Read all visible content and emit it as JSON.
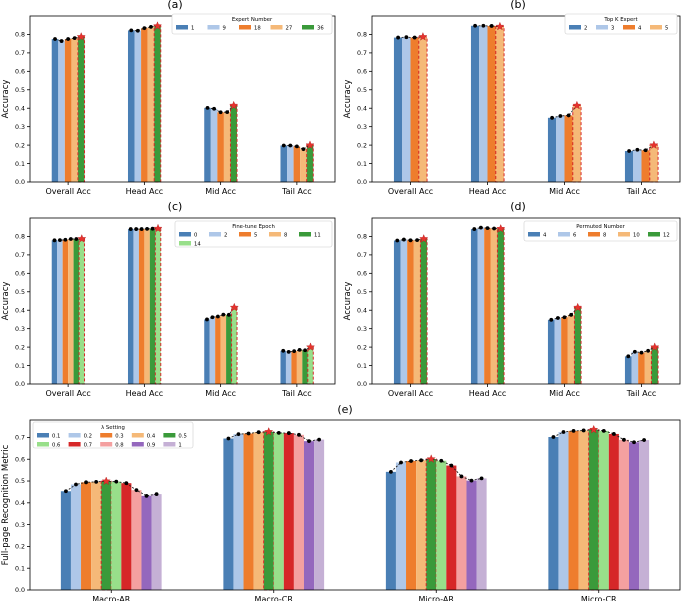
{
  "chart_data": [
    {
      "id": "a",
      "type": "bar",
      "title": "(a)",
      "xlabel": "",
      "ylabel": "Accuracy",
      "ylim": [
        0,
        0.9
      ],
      "yticks": [
        "0.0",
        "0.1",
        "0.2",
        "0.3",
        "0.4",
        "0.5",
        "0.6",
        "0.7",
        "0.8"
      ],
      "legend_title": "Expert Number",
      "legend_position": "top-right",
      "legend_cols": 5,
      "categories": [
        "Overall Acc",
        "Head Acc",
        "Mid Acc",
        "Tail Acc"
      ],
      "best_index": 4,
      "series": [
        {
          "name": "1",
          "color": "#4a7fb5",
          "values": [
            0.775,
            0.822,
            0.402,
            0.198
          ]
        },
        {
          "name": "9",
          "color": "#aec7e8",
          "values": [
            0.764,
            0.82,
            0.397,
            0.198
          ]
        },
        {
          "name": "18",
          "color": "#ee7d2d",
          "values": [
            0.775,
            0.834,
            0.378,
            0.193
          ]
        },
        {
          "name": "27",
          "color": "#f5b978",
          "values": [
            0.78,
            0.841,
            0.379,
            0.178
          ]
        },
        {
          "name": "36",
          "color": "#3a9a3a",
          "values": [
            0.787,
            0.846,
            0.415,
            0.2
          ]
        }
      ]
    },
    {
      "id": "b",
      "type": "bar",
      "title": "(b)",
      "xlabel": "",
      "ylabel": "Accuracy",
      "ylim": [
        0,
        0.9
      ],
      "yticks": [
        "0.0",
        "0.1",
        "0.2",
        "0.3",
        "0.4",
        "0.5",
        "0.6",
        "0.7",
        "0.8"
      ],
      "legend_title": "Top K Expert",
      "legend_position": "top-right",
      "legend_cols": 4,
      "categories": [
        "Overall Acc",
        "Head Acc",
        "Mid Acc",
        "Tail Acc"
      ],
      "best_index": 3,
      "series": [
        {
          "name": "2",
          "color": "#4a7fb5",
          "values": [
            0.783,
            0.847,
            0.348,
            0.168
          ]
        },
        {
          "name": "3",
          "color": "#aec7e8",
          "values": [
            0.785,
            0.847,
            0.358,
            0.175
          ]
        },
        {
          "name": "4",
          "color": "#ee7d2d",
          "values": [
            0.783,
            0.846,
            0.361,
            0.172
          ]
        },
        {
          "name": "5",
          "color": "#f5b978",
          "values": [
            0.787,
            0.843,
            0.415,
            0.2
          ]
        }
      ]
    },
    {
      "id": "c",
      "type": "bar",
      "title": "(c)",
      "xlabel": "",
      "ylabel": "Accuracy",
      "ylim": [
        0,
        0.9
      ],
      "yticks": [
        "0.0",
        "0.1",
        "0.2",
        "0.3",
        "0.4",
        "0.5",
        "0.6",
        "0.7",
        "0.8"
      ],
      "legend_title": "Fine-tune Epoch",
      "legend_position": "top-right",
      "legend_cols": 5,
      "categories": [
        "Overall Acc",
        "Head Acc",
        "Mid Acc",
        "Tail Acc"
      ],
      "best_index": 5,
      "series": [
        {
          "name": "0",
          "color": "#4a7fb5",
          "values": [
            0.779,
            0.84,
            0.35,
            0.18
          ]
        },
        {
          "name": "2",
          "color": "#aec7e8",
          "values": [
            0.78,
            0.84,
            0.362,
            0.174
          ]
        },
        {
          "name": "5",
          "color": "#ee7d2d",
          "values": [
            0.782,
            0.84,
            0.366,
            0.178
          ]
        },
        {
          "name": "8",
          "color": "#f5b978",
          "values": [
            0.786,
            0.841,
            0.376,
            0.185
          ]
        },
        {
          "name": "11",
          "color": "#3a9a3a",
          "values": [
            0.786,
            0.842,
            0.375,
            0.183
          ]
        },
        {
          "name": "14",
          "color": "#98df8a",
          "values": [
            0.787,
            0.843,
            0.415,
            0.2
          ]
        }
      ]
    },
    {
      "id": "d",
      "type": "bar",
      "title": "(d)",
      "xlabel": "",
      "ylabel": "Accuracy",
      "ylim": [
        0,
        0.9
      ],
      "yticks": [
        "0.0",
        "0.1",
        "0.2",
        "0.3",
        "0.4",
        "0.5",
        "0.6",
        "0.7",
        "0.8"
      ],
      "legend_title": "Permuted Number",
      "legend_position": "top-right",
      "legend_cols": 5,
      "categories": [
        "Overall Acc",
        "Head Acc",
        "Mid Acc",
        "Tail Acc"
      ],
      "best_index": 4,
      "series": [
        {
          "name": "4",
          "color": "#4a7fb5",
          "values": [
            0.778,
            0.84,
            0.348,
            0.15
          ]
        },
        {
          "name": "6",
          "color": "#aec7e8",
          "values": [
            0.783,
            0.848,
            0.358,
            0.175
          ]
        },
        {
          "name": "8",
          "color": "#ee7d2d",
          "values": [
            0.779,
            0.845,
            0.362,
            0.17
          ]
        },
        {
          "name": "10",
          "color": "#f5b978",
          "values": [
            0.78,
            0.843,
            0.375,
            0.18
          ]
        },
        {
          "name": "12",
          "color": "#3a9a3a",
          "values": [
            0.787,
            0.842,
            0.415,
            0.2
          ]
        }
      ]
    },
    {
      "id": "e",
      "type": "bar",
      "title": "(e)",
      "xlabel": "",
      "ylabel": "Full-page Recognition Metric",
      "ylim": [
        0,
        0.78
      ],
      "yticks": [
        "0.0",
        "0.1",
        "0.2",
        "0.3",
        "0.4",
        "0.5",
        "0.6",
        "0.7"
      ],
      "legend_title": "λ Setting",
      "legend_position": "top-left",
      "legend_cols": 5,
      "categories": [
        "Macro-AR",
        "Macro-CR",
        "Micro-AR",
        "Micro-CR"
      ],
      "best_index": 4,
      "series": [
        {
          "name": "0.1",
          "color": "#4a7fb5",
          "values": [
            0.453,
            0.695,
            0.542,
            0.702
          ]
        },
        {
          "name": "0.2",
          "color": "#aec7e8",
          "values": [
            0.484,
            0.715,
            0.585,
            0.725
          ]
        },
        {
          "name": "0.3",
          "color": "#ee7d2d",
          "values": [
            0.494,
            0.718,
            0.592,
            0.73
          ]
        },
        {
          "name": "0.4",
          "color": "#f5b978",
          "values": [
            0.496,
            0.724,
            0.595,
            0.732
          ]
        },
        {
          "name": "0.5",
          "color": "#3a9a3a",
          "values": [
            0.499,
            0.726,
            0.601,
            0.736
          ]
        },
        {
          "name": "0.6",
          "color": "#98df8a",
          "values": [
            0.497,
            0.721,
            0.593,
            0.73
          ]
        },
        {
          "name": "0.7",
          "color": "#d62728",
          "values": [
            0.49,
            0.72,
            0.571,
            0.716
          ]
        },
        {
          "name": "0.8",
          "color": "#f4a0a0",
          "values": [
            0.458,
            0.712,
            0.521,
            0.689
          ]
        },
        {
          "name": "0.9",
          "color": "#9467bd",
          "values": [
            0.432,
            0.683,
            0.502,
            0.678
          ]
        },
        {
          "name": "1",
          "color": "#c5b0d5",
          "values": [
            0.44,
            0.69,
            0.512,
            0.688
          ]
        }
      ]
    }
  ]
}
